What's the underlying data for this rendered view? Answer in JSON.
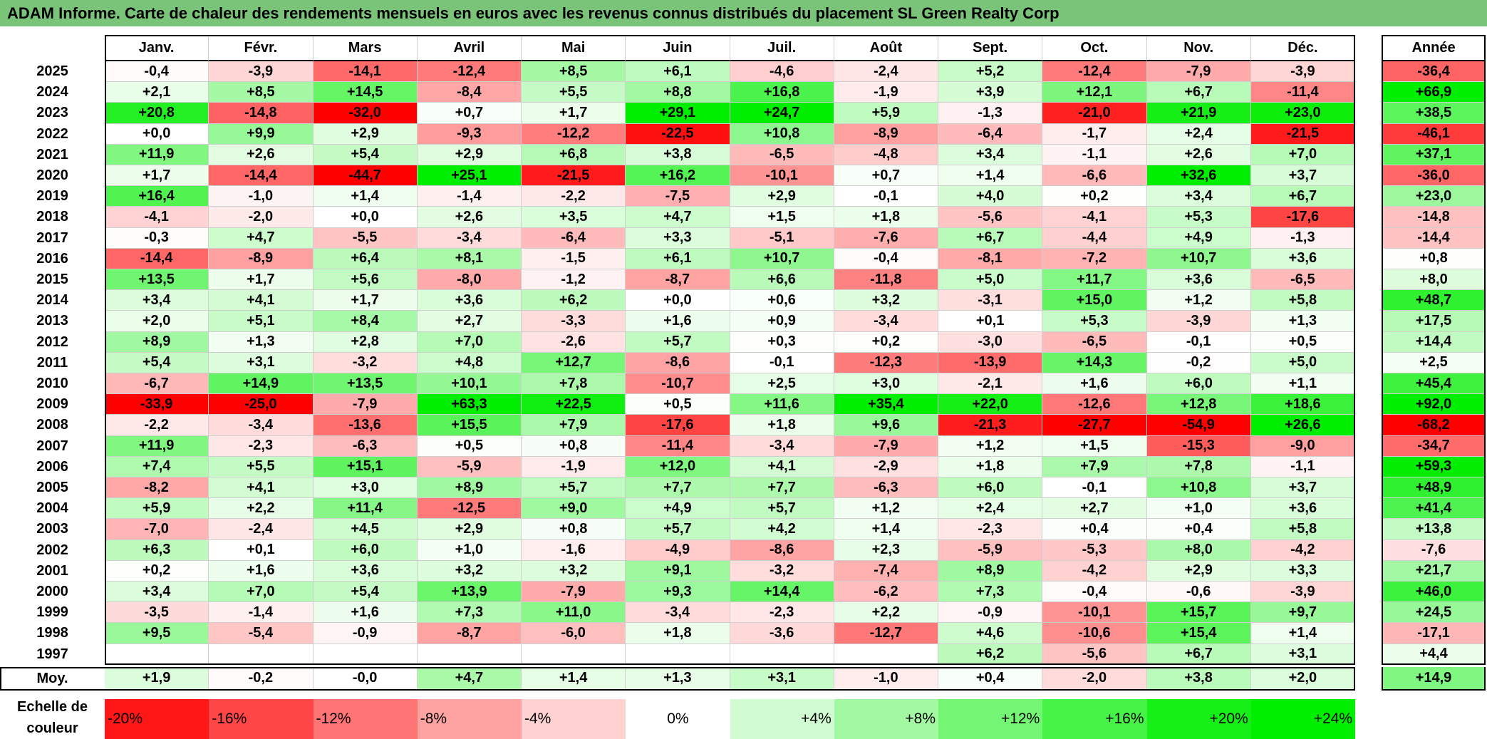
{
  "title": "ADAM Informe. Carte de chaleur des rendements mensuels en euros avec les revenus connus distribués du placement SL Green Realty Corp",
  "colors": {
    "title_bg": "#7ac47a",
    "neg_max": "#ff0000",
    "pos_max": "#00ee00",
    "neutral": "#ffffff"
  },
  "chart_data": {
    "type": "heatmap",
    "months": [
      "Janv.",
      "Févr.",
      "Mars",
      "Avril",
      "Mai",
      "Juin",
      "Juil.",
      "Août",
      "Sept.",
      "Oct.",
      "Nov.",
      "Déc."
    ],
    "year_header": "Année",
    "rows": [
      {
        "year": "2025",
        "values": [
          "-0,4",
          "-3,9",
          "-14,1",
          "-12,4",
          "+8,5",
          "+6,1",
          "-4,6",
          "-2,4",
          "+5,2",
          "-12,4",
          "-7,9",
          "-3,9"
        ],
        "annual": "-36,4"
      },
      {
        "year": "2024",
        "values": [
          "+2,1",
          "+8,5",
          "+14,5",
          "-8,4",
          "+5,5",
          "+8,8",
          "+16,8",
          "-1,9",
          "+3,9",
          "+12,1",
          "+6,7",
          "-11,4"
        ],
        "annual": "+66,9"
      },
      {
        "year": "2023",
        "values": [
          "+20,8",
          "-14,8",
          "-32,0",
          "+0,7",
          "+1,7",
          "+29,1",
          "+24,7",
          "+5,9",
          "-1,3",
          "-21,0",
          "+21,9",
          "+23,0"
        ],
        "annual": "+38,5"
      },
      {
        "year": "2022",
        "values": [
          "+0,0",
          "+9,9",
          "+2,9",
          "-9,3",
          "-12,2",
          "-22,5",
          "+10,8",
          "-8,9",
          "-6,4",
          "-1,7",
          "+2,4",
          "-21,5"
        ],
        "annual": "-46,1"
      },
      {
        "year": "2021",
        "values": [
          "+11,9",
          "+2,6",
          "+5,4",
          "+2,9",
          "+6,8",
          "+3,8",
          "-6,5",
          "-4,8",
          "+3,4",
          "-1,1",
          "+2,6",
          "+7,0"
        ],
        "annual": "+37,1"
      },
      {
        "year": "2020",
        "values": [
          "+1,7",
          "-14,4",
          "-44,7",
          "+25,1",
          "-21,5",
          "+16,2",
          "-10,1",
          "+0,7",
          "+1,4",
          "-6,6",
          "+32,6",
          "+3,7"
        ],
        "annual": "-36,0"
      },
      {
        "year": "2019",
        "values": [
          "+16,4",
          "-1,0",
          "+1,4",
          "-1,4",
          "-2,2",
          "-7,5",
          "+2,9",
          "-0,1",
          "+4,0",
          "+0,2",
          "+3,4",
          "+6,7"
        ],
        "annual": "+23,0"
      },
      {
        "year": "2018",
        "values": [
          "-4,1",
          "-2,0",
          "+0,0",
          "+2,6",
          "+3,5",
          "+4,7",
          "+1,5",
          "+1,8",
          "-5,6",
          "-4,1",
          "+5,3",
          "-17,6"
        ],
        "annual": "-14,8"
      },
      {
        "year": "2017",
        "values": [
          "-0,3",
          "+4,7",
          "-5,5",
          "-3,4",
          "-6,4",
          "+3,3",
          "-5,1",
          "-7,6",
          "+6,7",
          "-4,4",
          "+4,9",
          "-1,3"
        ],
        "annual": "-14,4"
      },
      {
        "year": "2016",
        "values": [
          "-14,4",
          "-8,9",
          "+6,4",
          "+8,1",
          "-1,5",
          "+6,1",
          "+10,7",
          "-0,4",
          "-8,1",
          "-7,2",
          "+10,7",
          "+3,6"
        ],
        "annual": "+0,8"
      },
      {
        "year": "2015",
        "values": [
          "+13,5",
          "+1,7",
          "+5,6",
          "-8,0",
          "-1,2",
          "-8,7",
          "+6,6",
          "-11,8",
          "+5,0",
          "+11,7",
          "+3,6",
          "-6,5"
        ],
        "annual": "+8,0"
      },
      {
        "year": "2014",
        "values": [
          "+3,4",
          "+4,1",
          "+1,7",
          "+3,6",
          "+6,2",
          "+0,0",
          "+0,6",
          "+3,2",
          "-3,1",
          "+15,0",
          "+1,2",
          "+5,8"
        ],
        "annual": "+48,7"
      },
      {
        "year": "2013",
        "values": [
          "+2,0",
          "+5,1",
          "+8,4",
          "+2,7",
          "-3,3",
          "+1,6",
          "+0,9",
          "-3,4",
          "+0,1",
          "+5,3",
          "-3,9",
          "+1,3"
        ],
        "annual": "+17,5"
      },
      {
        "year": "2012",
        "values": [
          "+8,9",
          "+1,3",
          "+2,8",
          "+7,0",
          "-2,6",
          "+5,7",
          "+0,3",
          "+0,2",
          "-3,0",
          "-6,5",
          "-0,1",
          "+0,5"
        ],
        "annual": "+14,4"
      },
      {
        "year": "2011",
        "values": [
          "+5,4",
          "+3,1",
          "-3,2",
          "+4,8",
          "+12,7",
          "-8,6",
          "-0,1",
          "-12,3",
          "-13,9",
          "+14,3",
          "-0,2",
          "+5,0"
        ],
        "annual": "+2,5"
      },
      {
        "year": "2010",
        "values": [
          "-6,7",
          "+14,9",
          "+13,5",
          "+10,1",
          "+7,8",
          "-10,7",
          "+2,5",
          "+3,0",
          "-2,1",
          "+1,6",
          "+6,0",
          "+1,1"
        ],
        "annual": "+45,4"
      },
      {
        "year": "2009",
        "values": [
          "-33,9",
          "-25,0",
          "-7,9",
          "+63,3",
          "+22,5",
          "+0,5",
          "+11,6",
          "+35,4",
          "+22,0",
          "-12,6",
          "+12,8",
          "+18,6"
        ],
        "annual": "+92,0"
      },
      {
        "year": "2008",
        "values": [
          "-2,2",
          "-3,4",
          "-13,6",
          "+15,5",
          "+7,9",
          "-17,6",
          "+1,8",
          "+9,6",
          "-21,3",
          "-27,7",
          "-54,9",
          "+26,6"
        ],
        "annual": "-68,2"
      },
      {
        "year": "2007",
        "values": [
          "+11,9",
          "-2,3",
          "-6,3",
          "+0,5",
          "+0,8",
          "-11,4",
          "-3,4",
          "-7,9",
          "+1,2",
          "+1,5",
          "-15,3",
          "-9,0"
        ],
        "annual": "-34,7"
      },
      {
        "year": "2006",
        "values": [
          "+7,4",
          "+5,5",
          "+15,1",
          "-5,9",
          "-1,9",
          "+12,0",
          "+4,1",
          "-2,9",
          "+1,8",
          "+7,9",
          "+7,8",
          "-1,1"
        ],
        "annual": "+59,3"
      },
      {
        "year": "2005",
        "values": [
          "-8,2",
          "+4,1",
          "+3,0",
          "+8,9",
          "+5,7",
          "+7,7",
          "+7,7",
          "-6,3",
          "+6,0",
          "-0,1",
          "+10,8",
          "+3,7"
        ],
        "annual": "+48,9"
      },
      {
        "year": "2004",
        "values": [
          "+5,9",
          "+2,2",
          "+11,4",
          "-12,5",
          "+9,0",
          "+4,9",
          "+5,7",
          "+1,2",
          "+2,4",
          "+2,7",
          "+1,0",
          "+3,6"
        ],
        "annual": "+41,4"
      },
      {
        "year": "2003",
        "values": [
          "-7,0",
          "-2,4",
          "+4,5",
          "+2,9",
          "+0,8",
          "+5,7",
          "+4,2",
          "+1,4",
          "-2,3",
          "+0,4",
          "+0,4",
          "+5,8"
        ],
        "annual": "+13,8"
      },
      {
        "year": "2002",
        "values": [
          "+6,3",
          "+0,1",
          "+6,0",
          "+1,0",
          "-1,6",
          "-4,9",
          "-8,6",
          "+2,3",
          "-5,9",
          "-5,3",
          "+8,0",
          "-4,2"
        ],
        "annual": "-7,6"
      },
      {
        "year": "2001",
        "values": [
          "+0,2",
          "+1,6",
          "+3,6",
          "+3,2",
          "+3,2",
          "+9,1",
          "-3,2",
          "-7,4",
          "+8,9",
          "-4,2",
          "+2,9",
          "+3,3"
        ],
        "annual": "+21,7"
      },
      {
        "year": "2000",
        "values": [
          "+3,4",
          "+7,0",
          "+5,4",
          "+13,9",
          "-7,9",
          "+9,3",
          "+14,4",
          "-6,2",
          "+7,3",
          "-0,4",
          "-0,6",
          "-3,9"
        ],
        "annual": "+46,0"
      },
      {
        "year": "1999",
        "values": [
          "-3,5",
          "-1,4",
          "+1,6",
          "+7,3",
          "+11,0",
          "-3,4",
          "-2,3",
          "+2,2",
          "-0,9",
          "-10,1",
          "+15,7",
          "+9,7"
        ],
        "annual": "+24,5"
      },
      {
        "year": "1998",
        "values": [
          "+9,5",
          "-5,4",
          "-0,9",
          "-8,7",
          "-6,0",
          "+1,8",
          "-3,6",
          "-12,7",
          "+4,6",
          "-10,6",
          "+15,4",
          "+1,4"
        ],
        "annual": "-17,1"
      },
      {
        "year": "1997",
        "values": [
          "",
          "",
          "",
          "",
          "",
          "",
          "",
          "",
          "+6,2",
          "-5,6",
          "+6,7",
          "+3,1"
        ],
        "annual": "+4,4"
      }
    ],
    "average": {
      "label": "Moy.",
      "values": [
        "+1,9",
        "-0,2",
        "-0,0",
        "+4,7",
        "+1,4",
        "+1,3",
        "+3,1",
        "-1,0",
        "+0,4",
        "-2,0",
        "+3,8",
        "+2,0"
      ],
      "annual": "+14,9"
    },
    "legend": {
      "label_line1": "Echelle de",
      "label_line2": "couleur",
      "items": [
        "-20%",
        "-16%",
        "-12%",
        "-8%",
        "-4%",
        "0%",
        "+4%",
        "+8%",
        "+12%",
        "+16%",
        "+20%",
        "+24%"
      ],
      "values": [
        -20,
        -16,
        -12,
        -8,
        -4,
        0,
        4,
        8,
        12,
        16,
        20,
        24
      ]
    }
  }
}
